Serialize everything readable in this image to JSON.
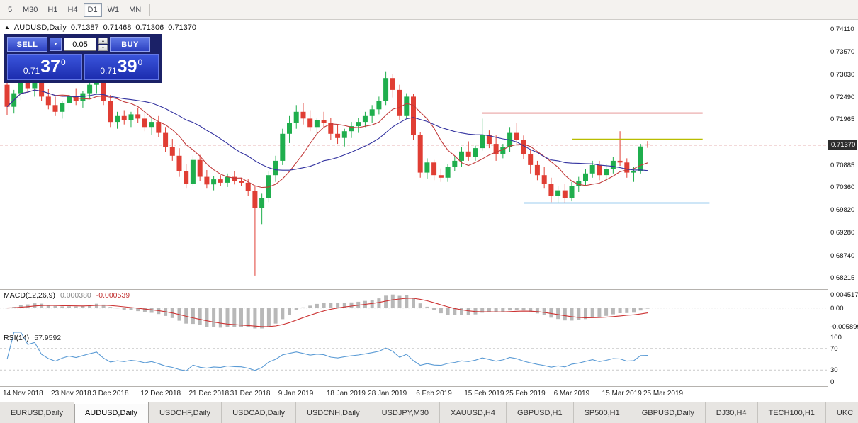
{
  "toolbar": {
    "timeframes": [
      "5",
      "M30",
      "H1",
      "H4",
      "D1",
      "W1",
      "MN"
    ],
    "active": "D1"
  },
  "chart_header": {
    "collapse_icon": "▲",
    "symbol": "AUDUSD,Daily",
    "open": "0.71387",
    "high": "0.71468",
    "low": "0.71306",
    "close": "0.71370"
  },
  "trade_panel": {
    "sell_label": "SELL",
    "buy_label": "BUY",
    "volume": "0.05",
    "sell_price": {
      "prefix": "0.71",
      "big": "37",
      "sup": "0"
    },
    "buy_price": {
      "prefix": "0.71",
      "big": "39",
      "sup": "0"
    }
  },
  "icons": {
    "volume_dropdown": "▼",
    "spin_up": "▲",
    "spin_down": "▼"
  },
  "price_axis": {
    "labels": [
      "0.74110",
      "0.73570",
      "0.73030",
      "0.72490",
      "0.71965",
      "0.70885",
      "0.70360",
      "0.69820",
      "0.69280",
      "0.68740",
      "0.68215"
    ],
    "current_price_tag": "0.71370"
  },
  "macd_panel": {
    "name": "MACD(12,26,9)",
    "value_main": "0.000380",
    "value_signal": "-0.000539",
    "axis_top": "0.004517",
    "axis_zero": "0.00",
    "axis_bottom": "-0.005899",
    "max": 0.004517,
    "min": -0.005899
  },
  "rsi_panel": {
    "name": "RSI(14)",
    "value": "57.9592",
    "axis_labels": [
      100,
      70,
      30,
      0
    ],
    "levels": [
      70,
      30
    ]
  },
  "tabs": {
    "active_index": 1,
    "items": [
      "EURUSD,Daily",
      "AUDUSD,Daily",
      "USDCHF,Daily",
      "USDCAD,Daily",
      "USDCNH,Daily",
      "USDJPY,M30",
      "XAUUSD,H4",
      "GBPUSD,H1",
      "SP500,H1",
      "GBPUSD,Daily",
      "DJ30,H4",
      "TECH100,H1",
      "UKC"
    ]
  },
  "colors": {
    "candle_up": "#1fae4d",
    "candle_down": "#e03e34",
    "ma_fast": "#c23b3b",
    "ma_slow": "#3333a0",
    "macd_hist": "#b8b8b8",
    "macd_signal": "#cc3333",
    "rsi_line": "#5b9bd5",
    "bid_line": "#e09a9a",
    "level_dash": "#c9c9c9"
  },
  "chart_data": {
    "type": "candlestick",
    "symbol": "AUDUSD",
    "timeframe": "Daily",
    "title": "AUDUSD,Daily",
    "last_bar": {
      "open": 0.71387,
      "high": 0.71468,
      "low": 0.71306,
      "close": 0.7137
    },
    "price_range": {
      "max": 0.7434,
      "min": 0.6796
    },
    "x_labels": [
      {
        "label": "14 Nov 2018",
        "i": 0
      },
      {
        "label": "23 Nov 2018",
        "i": 7
      },
      {
        "label": "3 Dec 2018",
        "i": 13
      },
      {
        "label": "12 Dec 2018",
        "i": 20
      },
      {
        "label": "21 Dec 2018",
        "i": 27
      },
      {
        "label": "31 Dec 2018",
        "i": 33
      },
      {
        "label": "9 Jan 2019",
        "i": 40
      },
      {
        "label": "18 Jan 2019",
        "i": 47
      },
      {
        "label": "28 Jan 2019",
        "i": 53
      },
      {
        "label": "6 Feb 2019",
        "i": 60
      },
      {
        "label": "15 Feb 2019",
        "i": 67
      },
      {
        "label": "25 Feb 2019",
        "i": 73
      },
      {
        "label": "6 Mar 2019",
        "i": 80
      },
      {
        "label": "15 Mar 2019",
        "i": 87
      },
      {
        "label": "25 Mar 2019",
        "i": 93
      }
    ],
    "ohlc": [
      [
        0.728,
        0.7302,
        0.7208,
        0.7228
      ],
      [
        0.7228,
        0.7268,
        0.7212,
        0.726
      ],
      [
        0.726,
        0.7298,
        0.7244,
        0.729
      ],
      [
        0.729,
        0.7308,
        0.7262,
        0.7272
      ],
      [
        0.7272,
        0.7296,
        0.7252,
        0.7288
      ],
      [
        0.7288,
        0.7302,
        0.7242,
        0.7252
      ],
      [
        0.7252,
        0.727,
        0.7222,
        0.7232
      ],
      [
        0.7232,
        0.7252,
        0.7206,
        0.7216
      ],
      [
        0.7216,
        0.7242,
        0.72,
        0.7236
      ],
      [
        0.7236,
        0.7262,
        0.722,
        0.7252
      ],
      [
        0.7252,
        0.7272,
        0.7232,
        0.7242
      ],
      [
        0.7242,
        0.7266,
        0.7226,
        0.726
      ],
      [
        0.726,
        0.7286,
        0.7246,
        0.728
      ],
      [
        0.728,
        0.7306,
        0.726,
        0.73
      ],
      [
        0.73,
        0.731,
        0.7232,
        0.7242
      ],
      [
        0.7242,
        0.7256,
        0.718,
        0.7192
      ],
      [
        0.7192,
        0.7216,
        0.7176,
        0.7206
      ],
      [
        0.7206,
        0.722,
        0.7186,
        0.7196
      ],
      [
        0.7196,
        0.7216,
        0.718,
        0.721
      ],
      [
        0.721,
        0.7226,
        0.719,
        0.72
      ],
      [
        0.72,
        0.7216,
        0.717,
        0.718
      ],
      [
        0.718,
        0.7202,
        0.7162,
        0.7192
      ],
      [
        0.7192,
        0.7206,
        0.7156,
        0.7166
      ],
      [
        0.7166,
        0.718,
        0.712,
        0.7132
      ],
      [
        0.7132,
        0.7152,
        0.71,
        0.7112
      ],
      [
        0.7112,
        0.713,
        0.7062,
        0.7076
      ],
      [
        0.7076,
        0.7092,
        0.7034,
        0.7046
      ],
      [
        0.7046,
        0.7112,
        0.704,
        0.7102
      ],
      [
        0.7102,
        0.7114,
        0.7052,
        0.7062
      ],
      [
        0.7062,
        0.7078,
        0.7034,
        0.7044
      ],
      [
        0.7044,
        0.7064,
        0.703,
        0.7056
      ],
      [
        0.7056,
        0.7066,
        0.704,
        0.7048
      ],
      [
        0.7048,
        0.707,
        0.7038,
        0.7062
      ],
      [
        0.7062,
        0.7076,
        0.7044,
        0.7052
      ],
      [
        0.7052,
        0.706,
        0.704,
        0.7048
      ],
      [
        0.7048,
        0.7056,
        0.7016,
        0.7028
      ],
      [
        0.7028,
        0.704,
        0.6828,
        0.6988
      ],
      [
        0.6988,
        0.7022,
        0.695,
        0.7012
      ],
      [
        0.7012,
        0.7076,
        0.7002,
        0.7066
      ],
      [
        0.7066,
        0.7112,
        0.705,
        0.71
      ],
      [
        0.71,
        0.7176,
        0.709,
        0.7164
      ],
      [
        0.7164,
        0.7206,
        0.7142,
        0.719
      ],
      [
        0.719,
        0.7232,
        0.7176,
        0.7216
      ],
      [
        0.7216,
        0.7236,
        0.7186,
        0.72
      ],
      [
        0.72,
        0.722,
        0.717,
        0.718
      ],
      [
        0.718,
        0.7202,
        0.716,
        0.7196
      ],
      [
        0.7196,
        0.7216,
        0.718,
        0.719
      ],
      [
        0.719,
        0.7202,
        0.715,
        0.7164
      ],
      [
        0.7164,
        0.7186,
        0.714,
        0.7154
      ],
      [
        0.7154,
        0.7176,
        0.7134,
        0.717
      ],
      [
        0.717,
        0.7192,
        0.7154,
        0.7182
      ],
      [
        0.7182,
        0.7202,
        0.7166,
        0.7192
      ],
      [
        0.7192,
        0.7216,
        0.718,
        0.7206
      ],
      [
        0.7206,
        0.7232,
        0.719,
        0.7222
      ],
      [
        0.7222,
        0.7252,
        0.721,
        0.7242
      ],
      [
        0.7242,
        0.7312,
        0.7232,
        0.7296
      ],
      [
        0.7296,
        0.7306,
        0.725,
        0.7268
      ],
      [
        0.7268,
        0.728,
        0.7196,
        0.7206
      ],
      [
        0.7206,
        0.726,
        0.72,
        0.7252
      ],
      [
        0.7252,
        0.7258,
        0.715,
        0.7162
      ],
      [
        0.7162,
        0.7168,
        0.706,
        0.7072
      ],
      [
        0.7072,
        0.7106,
        0.7058,
        0.7096
      ],
      [
        0.7096,
        0.7102,
        0.7054,
        0.7066
      ],
      [
        0.7066,
        0.7082,
        0.705,
        0.706
      ],
      [
        0.706,
        0.7092,
        0.705,
        0.7086
      ],
      [
        0.7086,
        0.7112,
        0.7076,
        0.71
      ],
      [
        0.71,
        0.7132,
        0.7086,
        0.7122
      ],
      [
        0.7122,
        0.7146,
        0.71,
        0.711
      ],
      [
        0.711,
        0.7136,
        0.71,
        0.713
      ],
      [
        0.713,
        0.72,
        0.7124,
        0.7162
      ],
      [
        0.7162,
        0.7172,
        0.713,
        0.714
      ],
      [
        0.714,
        0.716,
        0.71,
        0.7116
      ],
      [
        0.7116,
        0.714,
        0.7106,
        0.7132
      ],
      [
        0.7132,
        0.718,
        0.712,
        0.7166
      ],
      [
        0.7166,
        0.719,
        0.714,
        0.715
      ],
      [
        0.715,
        0.716,
        0.7104,
        0.7116
      ],
      [
        0.7116,
        0.7126,
        0.707,
        0.709
      ],
      [
        0.709,
        0.71,
        0.7054,
        0.7066
      ],
      [
        0.7066,
        0.7086,
        0.7034,
        0.7046
      ],
      [
        0.7046,
        0.706,
        0.7002,
        0.7016
      ],
      [
        0.7016,
        0.704,
        0.7,
        0.703
      ],
      [
        0.703,
        0.7046,
        0.7,
        0.7012
      ],
      [
        0.7012,
        0.705,
        0.7004,
        0.704
      ],
      [
        0.704,
        0.7062,
        0.7026,
        0.7052
      ],
      [
        0.7052,
        0.708,
        0.704,
        0.707
      ],
      [
        0.707,
        0.71,
        0.706,
        0.709
      ],
      [
        0.709,
        0.71,
        0.7054,
        0.7066
      ],
      [
        0.7066,
        0.7092,
        0.705,
        0.708
      ],
      [
        0.708,
        0.711,
        0.707,
        0.71
      ],
      [
        0.71,
        0.717,
        0.7088,
        0.7096
      ],
      [
        0.7096,
        0.7106,
        0.706,
        0.7072
      ],
      [
        0.7072,
        0.7086,
        0.705,
        0.7076
      ],
      [
        0.7076,
        0.714,
        0.707,
        0.7134
      ],
      [
        0.71387,
        0.71468,
        0.71306,
        0.7137
      ]
    ],
    "overlays": {
      "ma_fast_period": 8,
      "ma_slow_period": 20,
      "bid_price": 0.7137,
      "hlines": [
        {
          "name": "resistance-line",
          "color": "#d95f5f",
          "price": 0.7213,
          "i1": 69,
          "i2": 101
        },
        {
          "name": "minor-resistance-line",
          "color": "#b8bd00",
          "price": 0.7151,
          "i1": 82,
          "i2": 101
        },
        {
          "name": "support-line",
          "color": "#3e9be0",
          "price": 0.7,
          "i1": 75,
          "i2": 102
        }
      ]
    },
    "indicators": {
      "macd": {
        "fast": 12,
        "slow": 26,
        "signal": 9,
        "current_main": 0.00038,
        "current_signal": -0.000539
      },
      "rsi": {
        "period": 14,
        "current": 57.9592
      }
    }
  }
}
